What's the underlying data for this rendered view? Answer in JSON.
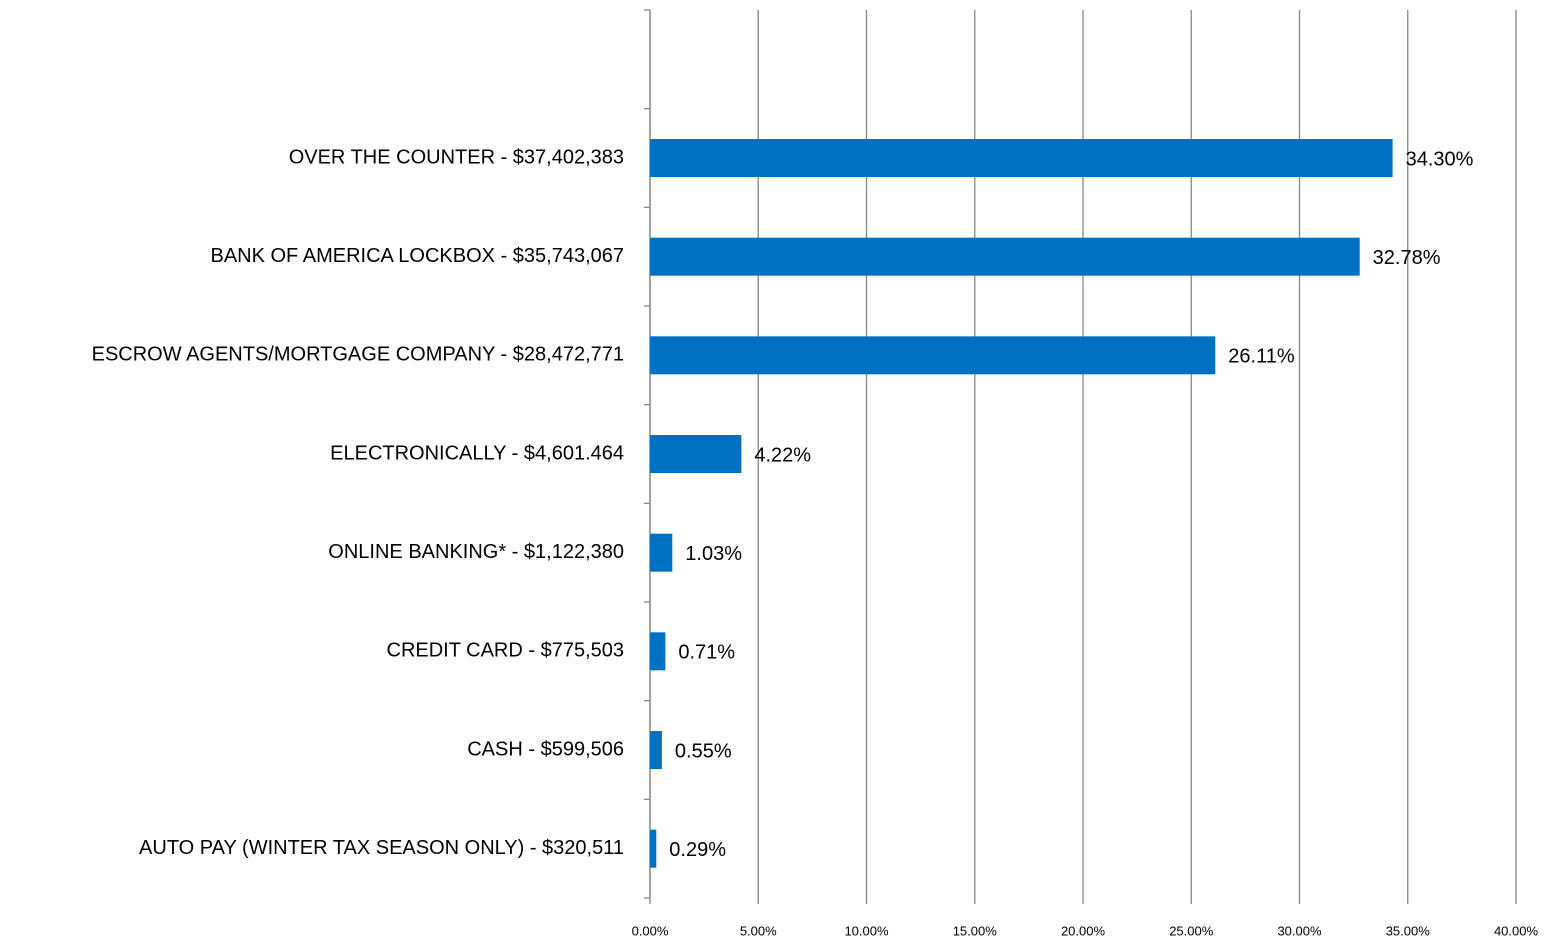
{
  "chart_data": {
    "type": "bar",
    "orientation": "horizontal",
    "categories": [
      null,
      "OVER THE COUNTER - $37,402,383",
      "BANK OF AMERICA LOCKBOX - $35,743,067",
      "ESCROW AGENTS/MORTGAGE COMPANY -  $28,472,771",
      "ELECTRONICALLY -  $4,601.464",
      "ONLINE BANKING*  - $1,122,380",
      "CREDIT CARD - $775,503",
      "CASH - $599,506",
      "AUTO PAY (WINTER TAX SEASON ONLY) - $320,511"
    ],
    "values": [
      null,
      34.3,
      32.78,
      26.11,
      4.22,
      1.03,
      0.71,
      0.55,
      0.29
    ],
    "value_labels": [
      null,
      "34.30%",
      "32.78%",
      "26.11%",
      "4.22%",
      "1.03%",
      "0.71%",
      "0.55%",
      "0.29%"
    ],
    "color": "#0070c0",
    "xlim": [
      0,
      40
    ],
    "xticks": [
      {
        "value": 0,
        "label": "0.00%"
      },
      {
        "value": 5,
        "label": "5.00%"
      },
      {
        "value": 10,
        "label": "10.00%"
      },
      {
        "value": 15,
        "label": "15.00%"
      },
      {
        "value": 20,
        "label": "20.00%"
      },
      {
        "value": 25,
        "label": "25.00%"
      },
      {
        "value": 30,
        "label": "30.00%"
      },
      {
        "value": 35,
        "label": "35.00%"
      },
      {
        "value": 40,
        "label": "40.00%"
      }
    ],
    "grid": true
  }
}
